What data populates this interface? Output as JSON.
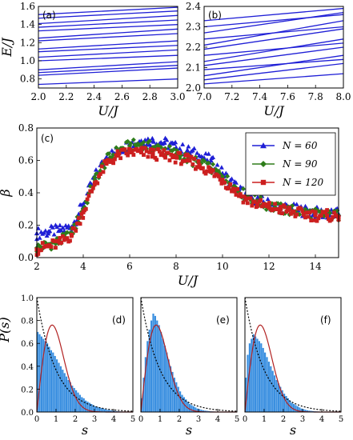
{
  "colors": {
    "level_lines": "#1f1fd6",
    "n60": "#1f1fd6",
    "n90": "#2e7d1a",
    "n120": "#cc1f1f",
    "hist_fill": "#3a8fe0",
    "goe_curve": "#b22222",
    "poisson_curve": "#000000"
  },
  "chart_data": [
    {
      "id": "a",
      "type": "line",
      "panel_label": "(a)",
      "xlabel": "U/J",
      "ylabel": "E/J",
      "xlim": [
        2.0,
        3.0
      ],
      "ylim": [
        0.7,
        1.6
      ],
      "xticks": [
        "2.0",
        "2.2",
        "2.4",
        "2.6",
        "2.8",
        "3.0"
      ],
      "yticks": [
        "0.8",
        "1.0",
        "1.2",
        "1.4",
        "1.6"
      ],
      "series": [
        {
          "x": [
            2.0,
            3.0
          ],
          "y": [
            0.74,
            0.8
          ]
        },
        {
          "x": [
            2.0,
            3.0
          ],
          "y": [
            0.84,
            0.92
          ]
        },
        {
          "x": [
            2.0,
            3.0
          ],
          "y": [
            0.87,
            0.95
          ]
        },
        {
          "x": [
            2.0,
            3.0
          ],
          "y": [
            0.9,
            0.99
          ]
        },
        {
          "x": [
            2.0,
            3.0
          ],
          "y": [
            1.0,
            1.06
          ]
        },
        {
          "x": [
            2.0,
            3.0
          ],
          "y": [
            1.04,
            1.12
          ]
        },
        {
          "x": [
            2.0,
            3.0
          ],
          "y": [
            1.1,
            1.17
          ]
        },
        {
          "x": [
            2.0,
            3.0
          ],
          "y": [
            1.13,
            1.22
          ]
        },
        {
          "x": [
            2.0,
            3.0
          ],
          "y": [
            1.22,
            1.3
          ]
        },
        {
          "x": [
            2.0,
            3.0
          ],
          "y": [
            1.25,
            1.35
          ]
        },
        {
          "x": [
            2.0,
            3.0
          ],
          "y": [
            1.33,
            1.4
          ]
        },
        {
          "x": [
            2.0,
            3.0
          ],
          "y": [
            1.37,
            1.45
          ]
        },
        {
          "x": [
            2.0,
            3.0
          ],
          "y": [
            1.41,
            1.5
          ]
        },
        {
          "x": [
            2.0,
            3.0
          ],
          "y": [
            1.47,
            1.55
          ]
        },
        {
          "x": [
            2.0,
            3.0
          ],
          "y": [
            1.51,
            1.59
          ]
        }
      ]
    },
    {
      "id": "b",
      "type": "line",
      "panel_label": "(b)",
      "xlabel": "U/J",
      "ylabel": "",
      "xlim": [
        7.0,
        8.0
      ],
      "ylim": [
        2.0,
        2.4
      ],
      "xticks": [
        "7.0",
        "7.2",
        "7.4",
        "7.6",
        "7.8",
        "8.0"
      ],
      "yticks": [
        "2.0",
        "2.1",
        "2.2",
        "2.3",
        "2.4"
      ],
      "series": [
        {
          "x": [
            7.0,
            8.0
          ],
          "y": [
            2.02,
            2.07
          ]
        },
        {
          "x": [
            7.0,
            8.0
          ],
          "y": [
            2.04,
            2.12
          ]
        },
        {
          "x": [
            7.0,
            8.0
          ],
          "y": [
            2.06,
            2.16
          ]
        },
        {
          "x": [
            7.0,
            8.0
          ],
          "y": [
            2.09,
            2.14
          ]
        },
        {
          "x": [
            7.0,
            8.0
          ],
          "y": [
            2.11,
            2.2
          ]
        },
        {
          "x": [
            7.0,
            8.0
          ],
          "y": [
            2.13,
            2.24
          ]
        },
        {
          "x": [
            7.0,
            8.0
          ],
          "y": [
            2.16,
            2.22
          ]
        },
        {
          "x": [
            7.0,
            8.0
          ],
          "y": [
            2.19,
            2.29
          ]
        },
        {
          "x": [
            7.0,
            8.0
          ],
          "y": [
            2.21,
            2.33
          ]
        },
        {
          "x": [
            7.0,
            8.0
          ],
          "y": [
            2.24,
            2.3
          ]
        },
        {
          "x": [
            7.0,
            8.0
          ],
          "y": [
            2.27,
            2.37
          ]
        },
        {
          "x": [
            7.0,
            8.0
          ],
          "y": [
            2.3,
            2.36
          ]
        },
        {
          "x": [
            7.0,
            8.0
          ],
          "y": [
            2.33,
            2.39
          ]
        }
      ]
    },
    {
      "id": "c",
      "type": "scatter",
      "panel_label": "(c)",
      "xlabel": "U/J",
      "ylabel": "β",
      "xlim": [
        2,
        15
      ],
      "ylim": [
        0.0,
        0.8
      ],
      "xticks": [
        "2",
        "4",
        "6",
        "8",
        "10",
        "12",
        "14"
      ],
      "yticks": [
        "0.0",
        "0.2",
        "0.4",
        "0.6",
        "0.8"
      ],
      "legend_position": "top-right",
      "series": [
        {
          "name": "N = 60",
          "marker": "triangle",
          "x": [
            2,
            2.5,
            3,
            3.5,
            4,
            4.5,
            5,
            5.5,
            6,
            6.5,
            7,
            7.5,
            8,
            8.5,
            9,
            9.5,
            10,
            10.5,
            11,
            11.5,
            12,
            12.5,
            13,
            13.5,
            14,
            14.5,
            15
          ],
          "y": [
            0.15,
            0.16,
            0.17,
            0.19,
            0.33,
            0.5,
            0.62,
            0.66,
            0.7,
            0.72,
            0.72,
            0.71,
            0.68,
            0.66,
            0.63,
            0.6,
            0.52,
            0.45,
            0.39,
            0.36,
            0.33,
            0.31,
            0.3,
            0.29,
            0.28,
            0.27,
            0.27
          ]
        },
        {
          "name": "N = 90",
          "marker": "diamond",
          "x": [
            2,
            2.5,
            3,
            3.5,
            4,
            4.5,
            5,
            5.5,
            6,
            6.5,
            7,
            7.5,
            8,
            8.5,
            9,
            9.5,
            10,
            10.5,
            11,
            11.5,
            12,
            12.5,
            13,
            13.5,
            14,
            14.5,
            15
          ],
          "y": [
            0.06,
            0.08,
            0.1,
            0.15,
            0.3,
            0.48,
            0.6,
            0.66,
            0.69,
            0.7,
            0.68,
            0.67,
            0.64,
            0.61,
            0.58,
            0.55,
            0.5,
            0.44,
            0.38,
            0.35,
            0.32,
            0.3,
            0.29,
            0.28,
            0.27,
            0.26,
            0.26
          ]
        },
        {
          "name": "N = 120",
          "marker": "square",
          "x": [
            2,
            2.5,
            3,
            3.5,
            4,
            4.5,
            5,
            5.5,
            6,
            6.5,
            7,
            7.5,
            8,
            8.5,
            9,
            9.5,
            10,
            10.5,
            11,
            11.5,
            12,
            12.5,
            13,
            13.5,
            14,
            14.5,
            15
          ],
          "y": [
            0.05,
            0.07,
            0.09,
            0.14,
            0.28,
            0.46,
            0.58,
            0.63,
            0.65,
            0.65,
            0.64,
            0.63,
            0.62,
            0.6,
            0.57,
            0.53,
            0.48,
            0.42,
            0.36,
            0.33,
            0.31,
            0.3,
            0.28,
            0.27,
            0.26,
            0.26,
            0.25
          ]
        }
      ]
    },
    {
      "id": "d",
      "type": "bar",
      "panel_label": "(d)",
      "xlabel": "s",
      "ylabel": "P(s)",
      "xlim": [
        0,
        5
      ],
      "ylim": [
        0,
        1.0
      ],
      "xticks": [
        "0",
        "1",
        "2",
        "3",
        "4",
        "5"
      ],
      "yticks": [
        "0.0",
        "0.2",
        "0.4",
        "0.6",
        "0.8",
        "1.0"
      ],
      "bin_width": 0.1,
      "values": [
        0.7,
        0.68,
        0.66,
        0.64,
        0.62,
        0.6,
        0.57,
        0.54,
        0.52,
        0.49,
        0.46,
        0.43,
        0.4,
        0.37,
        0.34,
        0.31,
        0.28,
        0.26,
        0.23,
        0.21,
        0.19,
        0.17,
        0.15,
        0.13,
        0.12,
        0.1,
        0.09,
        0.08,
        0.07,
        0.06,
        0.05,
        0.045,
        0.04,
        0.035,
        0.03,
        0.025,
        0.02,
        0.018,
        0.015,
        0.012,
        0.01,
        0.008,
        0.006,
        0.005,
        0.004,
        0.003,
        0.002,
        0.002,
        0.001,
        0.001
      ]
    },
    {
      "id": "e",
      "type": "bar",
      "panel_label": "(e)",
      "xlabel": "s",
      "ylabel": "",
      "xlim": [
        0,
        5
      ],
      "ylim": [
        0,
        1.0
      ],
      "xticks": [
        "0",
        "1",
        "2",
        "3",
        "4",
        "5"
      ],
      "bin_width": 0.1,
      "values": [
        0.12,
        0.3,
        0.48,
        0.62,
        0.72,
        0.8,
        0.86,
        0.84,
        0.8,
        0.76,
        0.7,
        0.64,
        0.58,
        0.52,
        0.46,
        0.4,
        0.35,
        0.3,
        0.26,
        0.22,
        0.18,
        0.15,
        0.13,
        0.11,
        0.09,
        0.07,
        0.06,
        0.05,
        0.04,
        0.03,
        0.025,
        0.02,
        0.015,
        0.012,
        0.01,
        0.008,
        0.006,
        0.005,
        0.004,
        0.003,
        0.002,
        0.002,
        0.001,
        0.001,
        0.001,
        0,
        0,
        0,
        0,
        0
      ]
    },
    {
      "id": "f",
      "type": "bar",
      "panel_label": "(f)",
      "xlabel": "s",
      "ylabel": "",
      "xlim": [
        0,
        5
      ],
      "ylim": [
        0,
        1.0
      ],
      "xticks": [
        "0",
        "1",
        "2",
        "3",
        "4",
        "5"
      ],
      "bin_width": 0.1,
      "values": [
        0.3,
        0.5,
        0.6,
        0.64,
        0.68,
        0.66,
        0.64,
        0.62,
        0.6,
        0.56,
        0.52,
        0.48,
        0.44,
        0.4,
        0.36,
        0.32,
        0.28,
        0.25,
        0.22,
        0.19,
        0.16,
        0.14,
        0.12,
        0.1,
        0.08,
        0.07,
        0.06,
        0.05,
        0.04,
        0.03,
        0.025,
        0.02,
        0.015,
        0.012,
        0.01,
        0.008,
        0.006,
        0.005,
        0.004,
        0.003,
        0.002,
        0.002,
        0.001,
        0.001,
        0.001,
        0,
        0,
        0,
        0,
        0
      ]
    }
  ]
}
